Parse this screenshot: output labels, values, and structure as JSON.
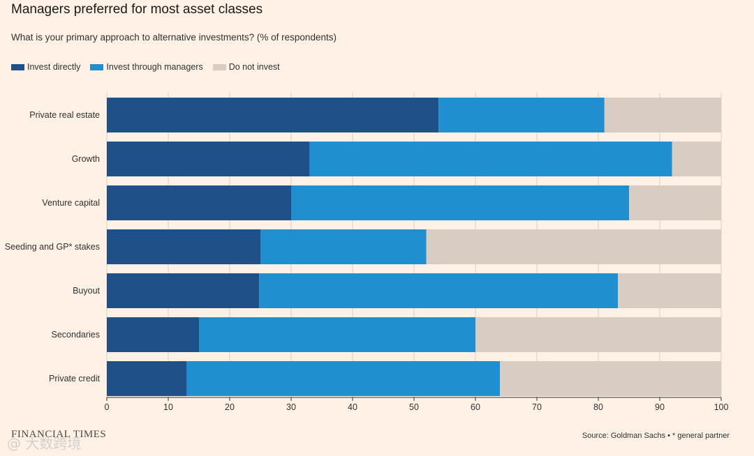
{
  "title": "Managers preferred for most asset classes",
  "subtitle": "What is your primary approach to alternative investments? (% of respondents)",
  "source": "Source: Goldman Sachs • * general partner",
  "brand": "FINANCIAL TIMES",
  "watermark": "@ 大数跨境",
  "colors": {
    "invest_directly": "#205088",
    "invest_managers": "#1f8fcf",
    "do_not_invest": "#d9ccc3",
    "grid": "#d6cec6",
    "background": "#fff1e5"
  },
  "chart_data": {
    "type": "bar",
    "orientation": "horizontal",
    "stacked": true,
    "categories": [
      "Private real estate",
      "Growth",
      "Venture capital",
      "Seeding and GP* stakes",
      "Buyout",
      "Secondaries",
      "Private credit"
    ],
    "series": [
      {
        "name": "Invest directly",
        "values": [
          54,
          33,
          30,
          25,
          24.8,
          15,
          13
        ]
      },
      {
        "name": "Invest through managers",
        "values": [
          27,
          59,
          55,
          27,
          58.4,
          45,
          51
        ]
      },
      {
        "name": "Do not invest",
        "values": [
          19,
          8,
          15,
          48,
          16.8,
          40,
          36
        ]
      }
    ],
    "xlim": [
      0,
      100
    ],
    "xticks": [
      0,
      10,
      20,
      30,
      40,
      50,
      60,
      70,
      80,
      90,
      100
    ],
    "grid": true,
    "legend": "top-left"
  }
}
